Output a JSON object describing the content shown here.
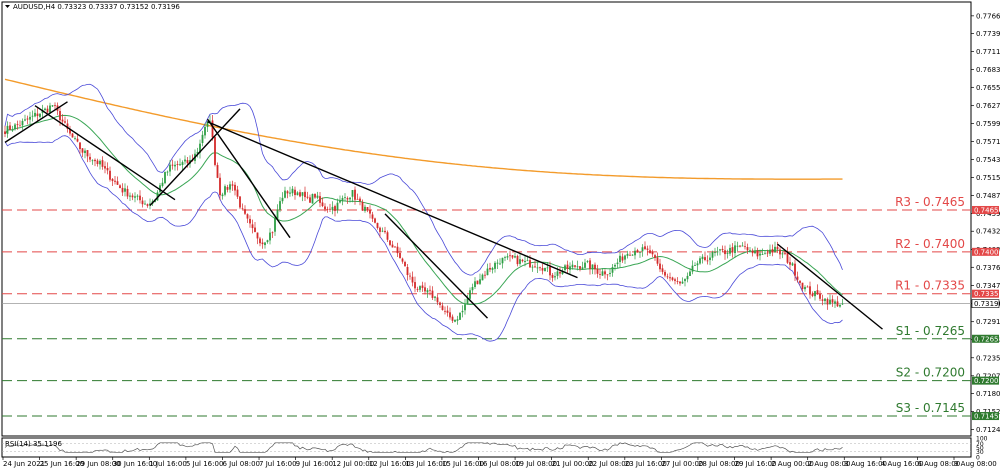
{
  "chart_data": {
    "type": "candlestick",
    "title": "AUDUSD,H4  0.73323 0.73337 0.73152 0.73196",
    "indicator_label": "RSI(14) 35.1196",
    "ylim": [
      0.7114,
      0.7788
    ],
    "price_ticks": [
      "0.77665",
      "0.77390",
      "0.77110",
      "0.76830",
      "0.76555",
      "0.76270",
      "0.75995",
      "0.75715",
      "0.75435",
      "0.75155",
      "0.74875",
      "0.74595",
      "0.74320",
      "0.74035",
      "0.73760",
      "0.73475",
      "0.73195",
      "0.72915",
      "0.72635",
      "0.72355",
      "0.72075",
      "0.71800",
      "0.71520",
      "0.71240"
    ],
    "rsi_ticks": [
      "100",
      "70",
      "50",
      "30",
      "0"
    ],
    "x_labels": [
      "24 Jun 2021",
      "25 Jun 16:00",
      "29 Jun 08:00",
      "30 Jun 16:00",
      "1 Jul 16:00",
      "5 Jul 16:00",
      "6 Jul 08:00",
      "7 Jul 16:00",
      "9 Jul 16:00",
      "12 Jul 00:00",
      "12 Jul 16:00",
      "13 Jul 16:00",
      "15 Jul 16:00",
      "16 Jul 08:00",
      "19 Jul 08:00",
      "21 Jul 00:00",
      "22 Jul 08:00",
      "23 Jul 16:00",
      "27 Jul 00:00",
      "28 Jul 08:00",
      "29 Jul 16:00",
      "2 Aug 00:00",
      "2 Aug 08:00",
      "3 Aug 16:00",
      "4 Aug 16:00",
      "6 Aug 08:00",
      "9 Aug 08:00"
    ],
    "current_price": "0.73196",
    "current_price_value": 0.73196,
    "levels": [
      {
        "label": "R3 - 0.7465",
        "tag": "0.74650",
        "value": 0.7465,
        "kind": "resistance"
      },
      {
        "label": "R2 - 0.7400",
        "tag": "0.74000",
        "value": 0.74,
        "kind": "resistance"
      },
      {
        "label": "R1 - 0.7335",
        "tag": "0.73350",
        "value": 0.7335,
        "kind": "resistance"
      },
      {
        "label": "S1 - 0.7265",
        "tag": "0.72650",
        "value": 0.7265,
        "kind": "support"
      },
      {
        "label": "S2 - 0.7200",
        "tag": "0.72000",
        "value": 0.72,
        "kind": "support"
      },
      {
        "label": "S3 - 0.7145",
        "tag": "0.71450",
        "value": 0.7145,
        "kind": "support"
      }
    ],
    "close_path": [
      [
        0,
        0.7589
      ],
      [
        6,
        0.7598
      ],
      [
        12,
        0.7612
      ],
      [
        17,
        0.7622
      ],
      [
        19,
        0.7628
      ],
      [
        22,
        0.7609
      ],
      [
        26,
        0.7582
      ],
      [
        31,
        0.7556
      ],
      [
        38,
        0.7536
      ],
      [
        44,
        0.7508
      ],
      [
        47,
        0.7496
      ],
      [
        53,
        0.7482
      ],
      [
        57,
        0.7474
      ],
      [
        60,
        0.7482
      ],
      [
        62,
        0.7502
      ],
      [
        64,
        0.7519
      ],
      [
        66,
        0.7531
      ],
      [
        70,
        0.7536
      ],
      [
        74,
        0.754
      ],
      [
        77,
        0.7557
      ],
      [
        79,
        0.7583
      ],
      [
        81,
        0.7598
      ],
      [
        82,
        0.7608
      ],
      [
        84,
        0.754
      ],
      [
        86,
        0.7492
      ],
      [
        88,
        0.7496
      ],
      [
        91,
        0.7507
      ],
      [
        95,
        0.7462
      ],
      [
        99,
        0.7432
      ],
      [
        103,
        0.7415
      ],
      [
        107,
        0.7433
      ],
      [
        109,
        0.7466
      ],
      [
        111,
        0.7487
      ],
      [
        113,
        0.7494
      ],
      [
        118,
        0.7492
      ],
      [
        121,
        0.7479
      ],
      [
        124,
        0.7488
      ],
      [
        127,
        0.7469
      ],
      [
        132,
        0.7469
      ],
      [
        136,
        0.7485
      ],
      [
        139,
        0.7491
      ],
      [
        142,
        0.7474
      ],
      [
        145,
        0.7461
      ],
      [
        147,
        0.7446
      ],
      [
        152,
        0.7426
      ],
      [
        155,
        0.7408
      ],
      [
        158,
        0.7392
      ],
      [
        161,
        0.7366
      ],
      [
        164,
        0.7347
      ],
      [
        167,
        0.7338
      ],
      [
        170,
        0.7335
      ],
      [
        173,
        0.7326
      ],
      [
        175,
        0.7309
      ],
      [
        177,
        0.73
      ],
      [
        180,
        0.7295
      ],
      [
        183,
        0.7308
      ],
      [
        187,
        0.7347
      ],
      [
        191,
        0.7364
      ],
      [
        194,
        0.7375
      ],
      [
        198,
        0.7387
      ],
      [
        203,
        0.7389
      ],
      [
        209,
        0.7382
      ],
      [
        214,
        0.738
      ],
      [
        219,
        0.7364
      ],
      [
        224,
        0.7373
      ],
      [
        228,
        0.7378
      ],
      [
        233,
        0.738
      ],
      [
        238,
        0.7368
      ],
      [
        242,
        0.737
      ],
      [
        246,
        0.7388
      ],
      [
        249,
        0.7399
      ],
      [
        253,
        0.7404
      ],
      [
        258,
        0.7399
      ],
      [
        262,
        0.7371
      ],
      [
        266,
        0.7359
      ],
      [
        270,
        0.7349
      ],
      [
        273,
        0.7358
      ],
      [
        276,
        0.738
      ],
      [
        280,
        0.7389
      ],
      [
        284,
        0.7397
      ],
      [
        288,
        0.74
      ],
      [
        292,
        0.7405
      ],
      [
        296,
        0.7408
      ],
      [
        298,
        0.7398
      ],
      [
        302,
        0.7395
      ],
      [
        305,
        0.7402
      ],
      [
        308,
        0.7403
      ],
      [
        312,
        0.7393
      ],
      [
        315,
        0.7377
      ],
      [
        318,
        0.7353
      ],
      [
        320,
        0.7343
      ],
      [
        323,
        0.7335
      ],
      [
        326,
        0.7331
      ],
      [
        328,
        0.7326
      ],
      [
        331,
        0.732
      ]
    ]
  }
}
